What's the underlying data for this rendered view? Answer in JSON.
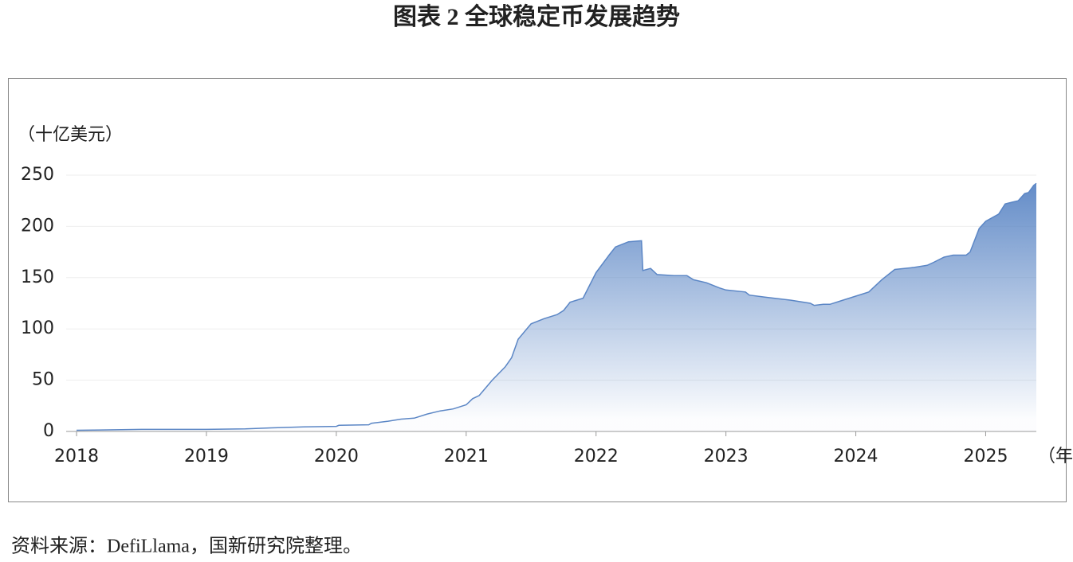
{
  "chart_data": {
    "type": "area",
    "title": "图表 2  全球稳定币发展趋势",
    "y_unit": "（十亿美元）",
    "x_unit": "（年）",
    "source": "资料来源：DefiLlama，国新研究院整理。",
    "color": "#5b86c5",
    "grid": true,
    "xlim": [
      2017.92,
      2025.39
    ],
    "xticks": [
      2018,
      2019,
      2020,
      2021,
      2022,
      2023,
      2024,
      2025
    ],
    "ylim": [
      0,
      250
    ],
    "yticks": [
      0,
      50,
      100,
      150,
      200,
      250
    ],
    "x": [
      2018.0,
      2018.5,
      2019.0,
      2019.3,
      2019.5,
      2019.75,
      2020.0,
      2020.02,
      2020.25,
      2020.27,
      2020.4,
      2020.5,
      2020.6,
      2020.7,
      2020.8,
      2020.9,
      2021.0,
      2021.05,
      2021.1,
      2021.2,
      2021.3,
      2021.35,
      2021.4,
      2021.5,
      2021.6,
      2021.7,
      2021.75,
      2021.8,
      2021.9,
      2022.0,
      2022.1,
      2022.15,
      2022.25,
      2022.35,
      2022.36,
      2022.42,
      2022.47,
      2022.6,
      2022.7,
      2022.75,
      2022.85,
      2022.95,
      2023.0,
      2023.15,
      2023.18,
      2023.3,
      2023.5,
      2023.65,
      2023.68,
      2023.75,
      2023.8,
      2023.9,
      2024.0,
      2024.1,
      2024.2,
      2024.3,
      2024.45,
      2024.55,
      2024.6,
      2024.68,
      2024.75,
      2024.85,
      2024.88,
      2024.95,
      2025.0,
      2025.1,
      2025.15,
      2025.25,
      2025.3,
      2025.33,
      2025.37,
      2025.39
    ],
    "values": [
      1.2,
      2,
      2,
      2.5,
      3.5,
      4.5,
      5,
      6,
      6.5,
      8,
      10,
      12,
      13,
      17,
      20,
      22,
      26,
      32,
      35,
      50,
      63,
      72,
      90,
      105,
      110,
      114,
      118,
      126,
      130,
      155,
      172,
      180,
      185,
      186,
      157,
      159,
      153,
      152,
      152,
      148,
      145,
      140,
      138,
      136,
      133,
      131,
      128,
      125,
      123,
      124,
      124,
      128,
      132,
      136,
      148,
      158,
      160,
      162,
      165,
      170,
      172,
      172,
      175,
      198,
      205,
      212,
      222,
      225,
      232,
      233,
      240,
      242
    ]
  }
}
